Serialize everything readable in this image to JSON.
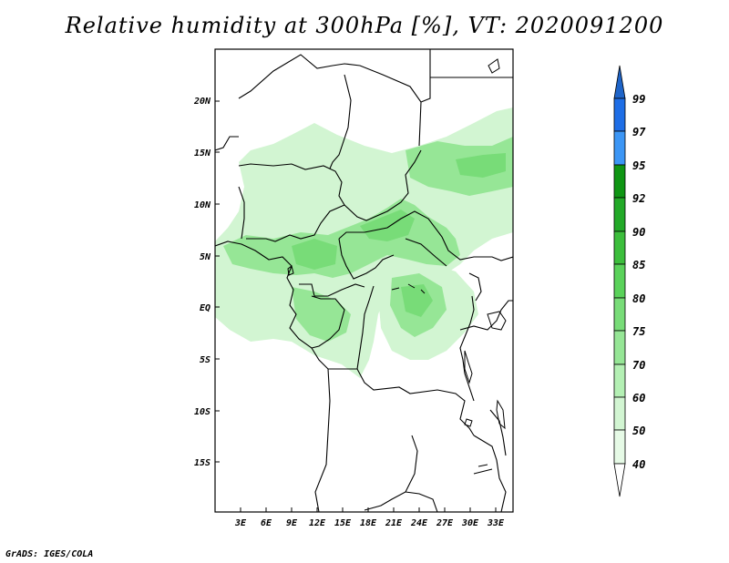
{
  "title": "Relative humidity at 300hPa [%], VT: 2020091200",
  "credit": "GrADS: IGES/COLA",
  "map": {
    "lat_labels": [
      "20N",
      "15N",
      "10N",
      "5N",
      "EQ",
      "5S",
      "10S",
      "15S"
    ],
    "lon_labels": [
      "3E",
      "6E",
      "9E",
      "12E",
      "15E",
      "18E",
      "21E",
      "24E",
      "27E",
      "30E",
      "33E"
    ]
  },
  "colorbar": {
    "levels": [
      "99",
      "97",
      "95",
      "92",
      "90",
      "85",
      "80",
      "75",
      "70",
      "60",
      "50",
      "40"
    ],
    "colors": {
      "above_99": "#1e64c8",
      "97_99": "#1e6ee6",
      "95_97": "#3c96f5",
      "92_95": "#0f9614",
      "90_92": "#23aa28",
      "85_90": "#3cbe3c",
      "80_85": "#5ad25a",
      "75_80": "#78dc78",
      "70_75": "#96e696",
      "60_70": "#b4f0b4",
      "50_60": "#d2f5d2",
      "40_50": "#e6fae6",
      "below_40": "#ffffff"
    }
  }
}
